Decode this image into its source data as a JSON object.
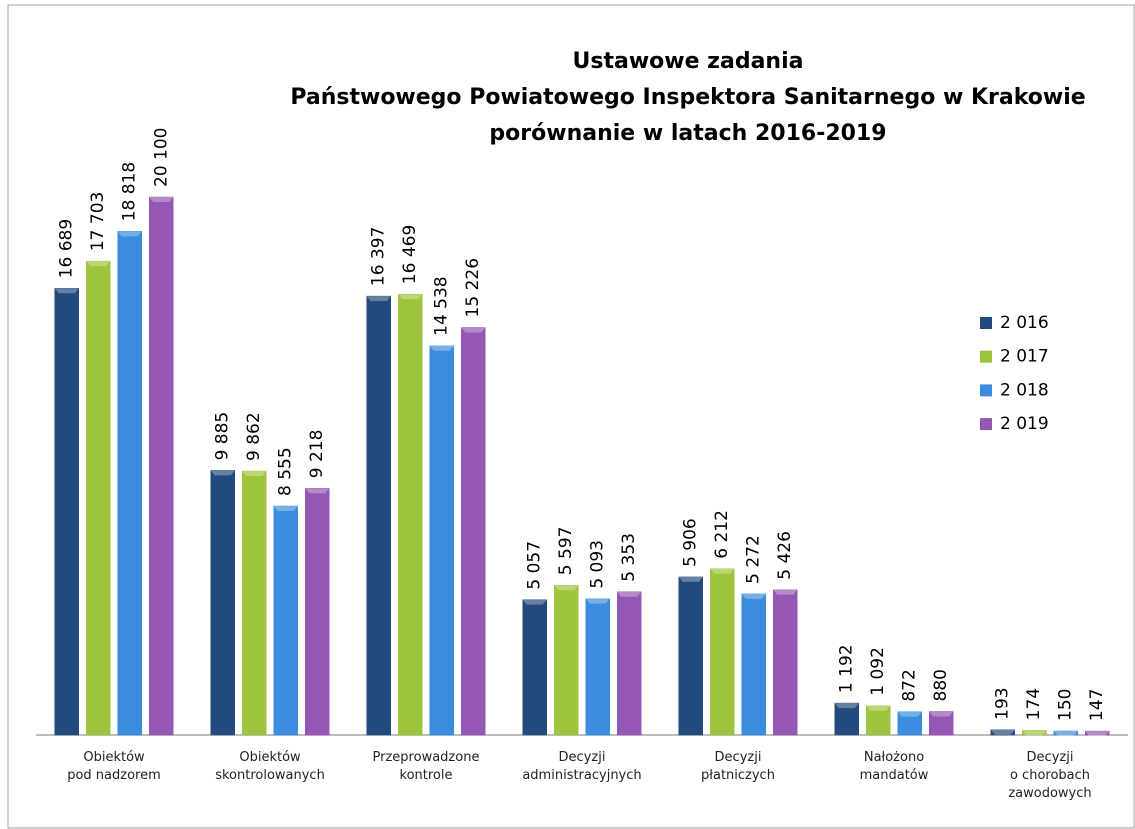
{
  "chart_data": {
    "type": "bar",
    "title": [
      "Ustawowe zadania",
      "Państwowego Powiatowego Inspektora Sanitarnego w Krakowie",
      "porównanie w latach 2016-2019"
    ],
    "categories": [
      "Obiektów\npod nadzorem",
      "Obiektów\nskontrolowanych",
      "Przeprowadzone\nkontrole",
      "Decyzji\nadministracyjnych",
      "Decyzji\npłatniczych",
      "Nałożono\nmandatów",
      "Decyzji\no chorobach\nzawodowych"
    ],
    "series": [
      {
        "name": "2 016",
        "color": "#234a7c",
        "values": [
          16689,
          9885,
          16397,
          5057,
          5906,
          1192,
          193
        ],
        "value_labels": [
          "16 689",
          "9 885",
          "16 397",
          "5 057",
          "5 906",
          "1 192",
          "193"
        ]
      },
      {
        "name": "2 017",
        "color": "#9cc43c",
        "values": [
          17703,
          9862,
          16469,
          5597,
          6212,
          1092,
          174
        ],
        "value_labels": [
          "17 703",
          "9 862",
          "16 469",
          "5 597",
          "6 212",
          "1 092",
          "174"
        ]
      },
      {
        "name": "2 018",
        "color": "#3a8ddc",
        "values": [
          18818,
          8555,
          14538,
          5093,
          5272,
          872,
          150
        ],
        "value_labels": [
          "18 818",
          "8 555",
          "14 538",
          "5 093",
          "5 272",
          "872",
          "150"
        ]
      },
      {
        "name": "2 019",
        "color": "#9557b4",
        "values": [
          20100,
          9218,
          15226,
          5353,
          5426,
          880,
          147
        ],
        "value_labels": [
          "20 100",
          "9 218",
          "15 226",
          "5 353",
          "5 426",
          "880",
          "147"
        ]
      }
    ],
    "legend": "right"
  }
}
